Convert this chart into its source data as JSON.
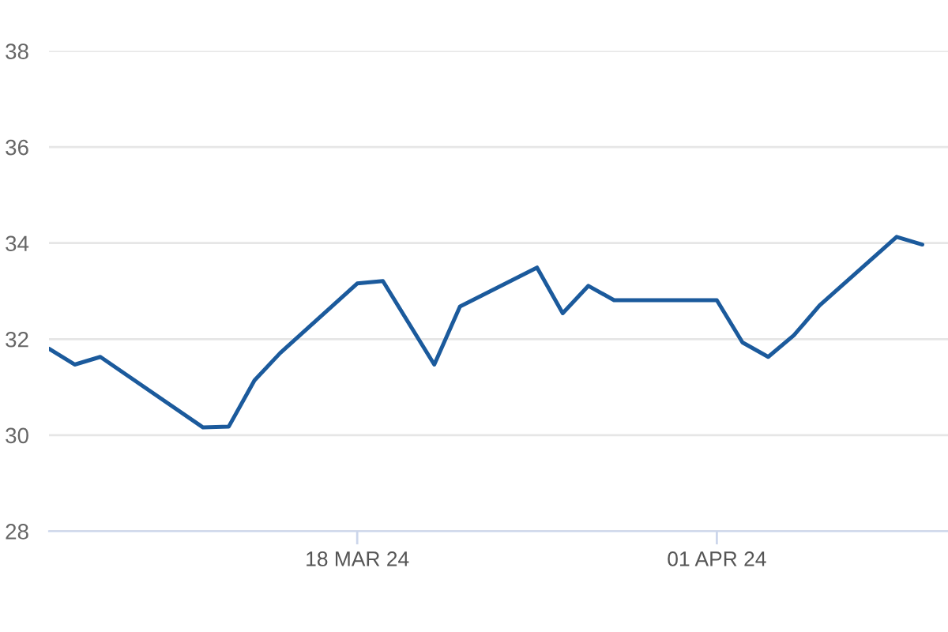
{
  "chart_data": {
    "type": "line",
    "x": [
      "2024-03-06",
      "2024-03-07",
      "2024-03-08",
      "2024-03-12",
      "2024-03-13",
      "2024-03-14",
      "2024-03-15",
      "2024-03-18",
      "2024-03-19",
      "2024-03-21",
      "2024-03-22",
      "2024-03-25",
      "2024-03-26",
      "2024-03-27",
      "2024-03-28",
      "2024-04-01",
      "2024-04-02",
      "2024-04-03",
      "2024-04-04",
      "2024-04-05",
      "2024-04-08",
      "2024-04-09"
    ],
    "series": [
      {
        "color": "#1b5a9c",
        "values": [
          31.8,
          31.47,
          31.63,
          30.16,
          30.18,
          31.14,
          31.71,
          33.16,
          33.21,
          31.47,
          32.68,
          33.49,
          32.54,
          33.11,
          32.81,
          32.81,
          31.93,
          31.63,
          32.08,
          32.7,
          34.13,
          33.97
        ]
      }
    ],
    "xlim": [
      "2024-03-06",
      "2024-04-10"
    ],
    "xticks": [
      {
        "value": "2024-03-18",
        "label": "18 MAR 24"
      },
      {
        "value": "2024-04-01",
        "label": "01 APR 24"
      }
    ],
    "ylim": [
      28,
      38
    ],
    "yticks": [
      28,
      30,
      32,
      34,
      36,
      38
    ],
    "grid": "y",
    "marker": "none",
    "line_style": "solid"
  }
}
